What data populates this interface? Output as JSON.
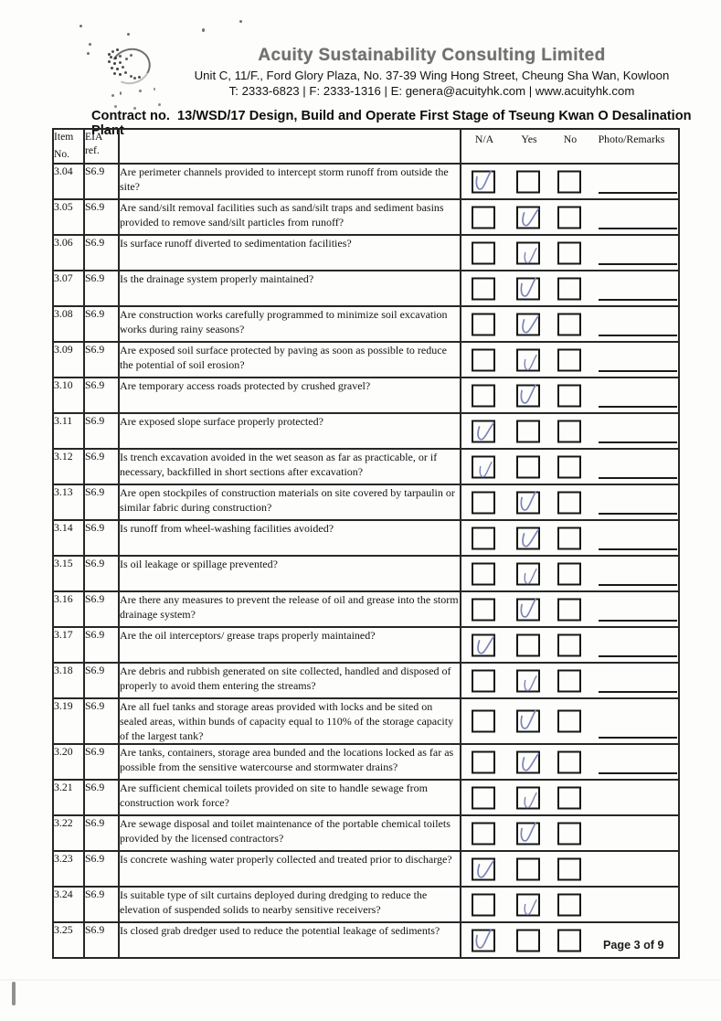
{
  "header": {
    "company_name": "Acuity Sustainability Consulting Limited",
    "address": "Unit C, 11/F., Ford Glory Plaza, No. 37-39 Wing Hong Street, Cheung Sha Wan, Kowloon",
    "contact": "T: 2333-6823 | F: 2333-1316 | E: genera@acuityhk.com | www.acuityhk.com"
  },
  "contract_title": "Contract no.  13/WSD/17 Design, Build and Operate First Stage of Tseung Kwan O Desalination Plant",
  "table": {
    "headers": {
      "item_no_line1": "Item",
      "item_no_line2": "No.",
      "eia_ref": "EIA ref.",
      "na": "N/A",
      "yes": "Yes",
      "no": "No",
      "photo_remarks": "Photo/Remarks"
    },
    "rows": [
      {
        "item": "3.04",
        "eia_ref": "S6.9",
        "question": "Are perimeter channels provided to intercept storm runoff from outside the site?",
        "checked": "na",
        "remark_line": true
      },
      {
        "item": "3.05",
        "eia_ref": "S6.9",
        "question": "Are sand/silt removal facilities such as sand/silt traps and sediment basins provided to remove sand/silt particles from runoff?",
        "checked": "yes",
        "remark_line": true
      },
      {
        "item": "3.06",
        "eia_ref": "S6.9",
        "question": "Is surface runoff diverted to sedimentation facilities?",
        "checked": "yes",
        "remark_line": true
      },
      {
        "item": "3.07",
        "eia_ref": "S6.9",
        "question": "Is the drainage system properly maintained?",
        "checked": "yes",
        "remark_line": true
      },
      {
        "item": "3.08",
        "eia_ref": "S6.9",
        "question": "Are construction works carefully programmed to minimize soil excavation works during rainy seasons?",
        "checked": "yes",
        "remark_line": true
      },
      {
        "item": "3.09",
        "eia_ref": "S6.9",
        "question": "Are exposed soil surface protected by paving as soon as possible to reduce the potential of soil erosion?",
        "checked": "yes",
        "remark_line": true
      },
      {
        "item": "3.10",
        "eia_ref": "S6.9",
        "question": "Are temporary access roads protected by crushed gravel?",
        "checked": "yes",
        "remark_line": true
      },
      {
        "item": "3.11",
        "eia_ref": "S6.9",
        "question": "Are exposed slope surface properly protected?",
        "checked": "na",
        "remark_line": true
      },
      {
        "item": "3.12",
        "eia_ref": "S6.9",
        "question": "Is trench excavation avoided in the wet season as far as practicable, or if necessary, backfilled in short sections after excavation?",
        "checked": "na",
        "remark_line": true
      },
      {
        "item": "3.13",
        "eia_ref": "S6.9",
        "question": "Are open stockpiles of construction materials on site covered by tarpaulin or similar fabric during construction?",
        "checked": "yes",
        "remark_line": true
      },
      {
        "item": "3.14",
        "eia_ref": "S6.9",
        "question": "Is runoff from wheel-washing facilities avoided?",
        "checked": "yes",
        "remark_line": true
      },
      {
        "item": "3.15",
        "eia_ref": "S6.9",
        "question": "Is oil leakage or spillage prevented?",
        "checked": "yes",
        "remark_line": true
      },
      {
        "item": "3.16",
        "eia_ref": "S6.9",
        "question": "Are there any measures to prevent the release of oil and grease into the storm drainage system?",
        "checked": "yes",
        "remark_line": true
      },
      {
        "item": "3.17",
        "eia_ref": "S6.9",
        "question": "Are the oil interceptors/ grease traps properly maintained?",
        "checked": "na",
        "remark_line": true
      },
      {
        "item": "3.18",
        "eia_ref": "S6.9",
        "question": "Are debris and rubbish generated on site collected, handled and disposed of properly to avoid them entering the streams?",
        "checked": "yes",
        "remark_line": true
      },
      {
        "item": "3.19",
        "eia_ref": "S6.9",
        "question": "Are all fuel tanks and storage areas provided with locks and be sited on sealed areas, within bunds of capacity equal to 110% of the storage capacity of the largest tank?",
        "checked": "yes",
        "remark_line": true
      },
      {
        "item": "3.20",
        "eia_ref": "S6.9",
        "question": "Are tanks, containers, storage area bunded and the locations locked as far as possible from the sensitive watercourse and stormwater drains?",
        "checked": "yes",
        "remark_line": true
      },
      {
        "item": "3.21",
        "eia_ref": "S6.9",
        "question": "Are sufficient chemical toilets provided on site to handle sewage from construction work force?",
        "checked": "yes",
        "remark_line": false
      },
      {
        "item": "3.22",
        "eia_ref": "S6.9",
        "question": "Are sewage disposal and toilet maintenance of the portable chemical toilets provided by the licensed contractors?",
        "checked": "yes",
        "remark_line": false
      },
      {
        "item": "3.23",
        "eia_ref": "S6.9",
        "question": "Is concrete washing water properly collected and treated prior to discharge?",
        "checked": "na",
        "remark_line": false
      },
      {
        "item": "3.24",
        "eia_ref": "S6.9",
        "question": "Is suitable type of silt curtains deployed during dredging to reduce the elevation of suspended solids to nearby sensitive receivers?",
        "checked": "yes",
        "remark_line": false
      },
      {
        "item": "3.25",
        "eia_ref": "S6.9",
        "question": "Is closed grab dredger used to reduce the potential leakage of sediments?",
        "checked": "na",
        "remark_line": false
      }
    ]
  },
  "footer": {
    "page_label": "Page 3 of 9"
  },
  "colors": {
    "pen_check": "#7b84b8",
    "ink": "#1e1e1e"
  }
}
